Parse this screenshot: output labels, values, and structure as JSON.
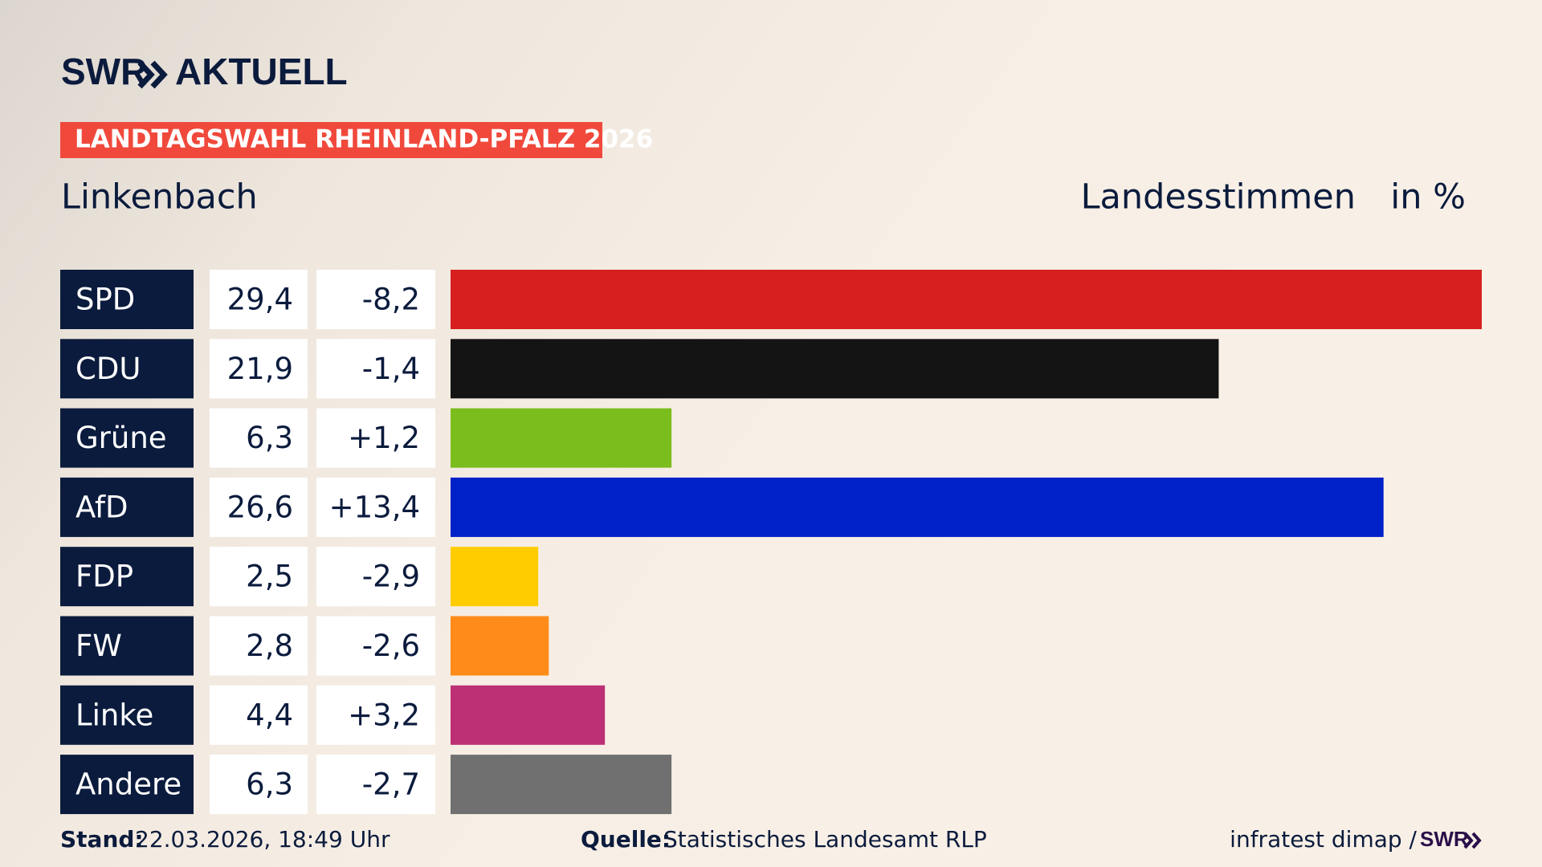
{
  "header": {
    "brand": "SWR",
    "section": "AKTUELL"
  },
  "chart_data": {
    "type": "bar",
    "title": "LANDTAGSWAHL RHEINLAND-PFALZ 2026",
    "subtitle": "Linkenbach",
    "value_heading": "Landesstimmen",
    "unit_heading": "in %",
    "categories": [
      "SPD",
      "CDU",
      "Grüne",
      "AfD",
      "FDP",
      "FW",
      "Linke",
      "Andere"
    ],
    "values": [
      29.4,
      21.9,
      6.3,
      26.6,
      2.5,
      2.8,
      4.4,
      6.3
    ],
    "value_labels": [
      "29,4",
      "21,9",
      "6,3",
      "26,6",
      "2,5",
      "2,8",
      "4,4",
      "6,3"
    ],
    "changes": [
      -8.2,
      -1.4,
      1.2,
      13.4,
      -2.9,
      -2.6,
      3.2,
      -2.7
    ],
    "change_labels": [
      "-8,2",
      "-1,4",
      "+1,2",
      "+13,4",
      "-2,9",
      "-2,6",
      "+3,2",
      "-2,7"
    ],
    "colors": [
      "#d71f20",
      "#141414",
      "#7bbd1d",
      "#0021c8",
      "#ffcc00",
      "#ff8c1a",
      "#bd3075",
      "#707070"
    ]
  },
  "footer": {
    "stand_label": "Stand:",
    "stand": "22.03.2026, 18:49 Uhr",
    "source_label": "Quelle:",
    "source": "Statistisches Landesamt RLP",
    "credit": "infratest dimap /",
    "credit_brand": "SWR"
  }
}
